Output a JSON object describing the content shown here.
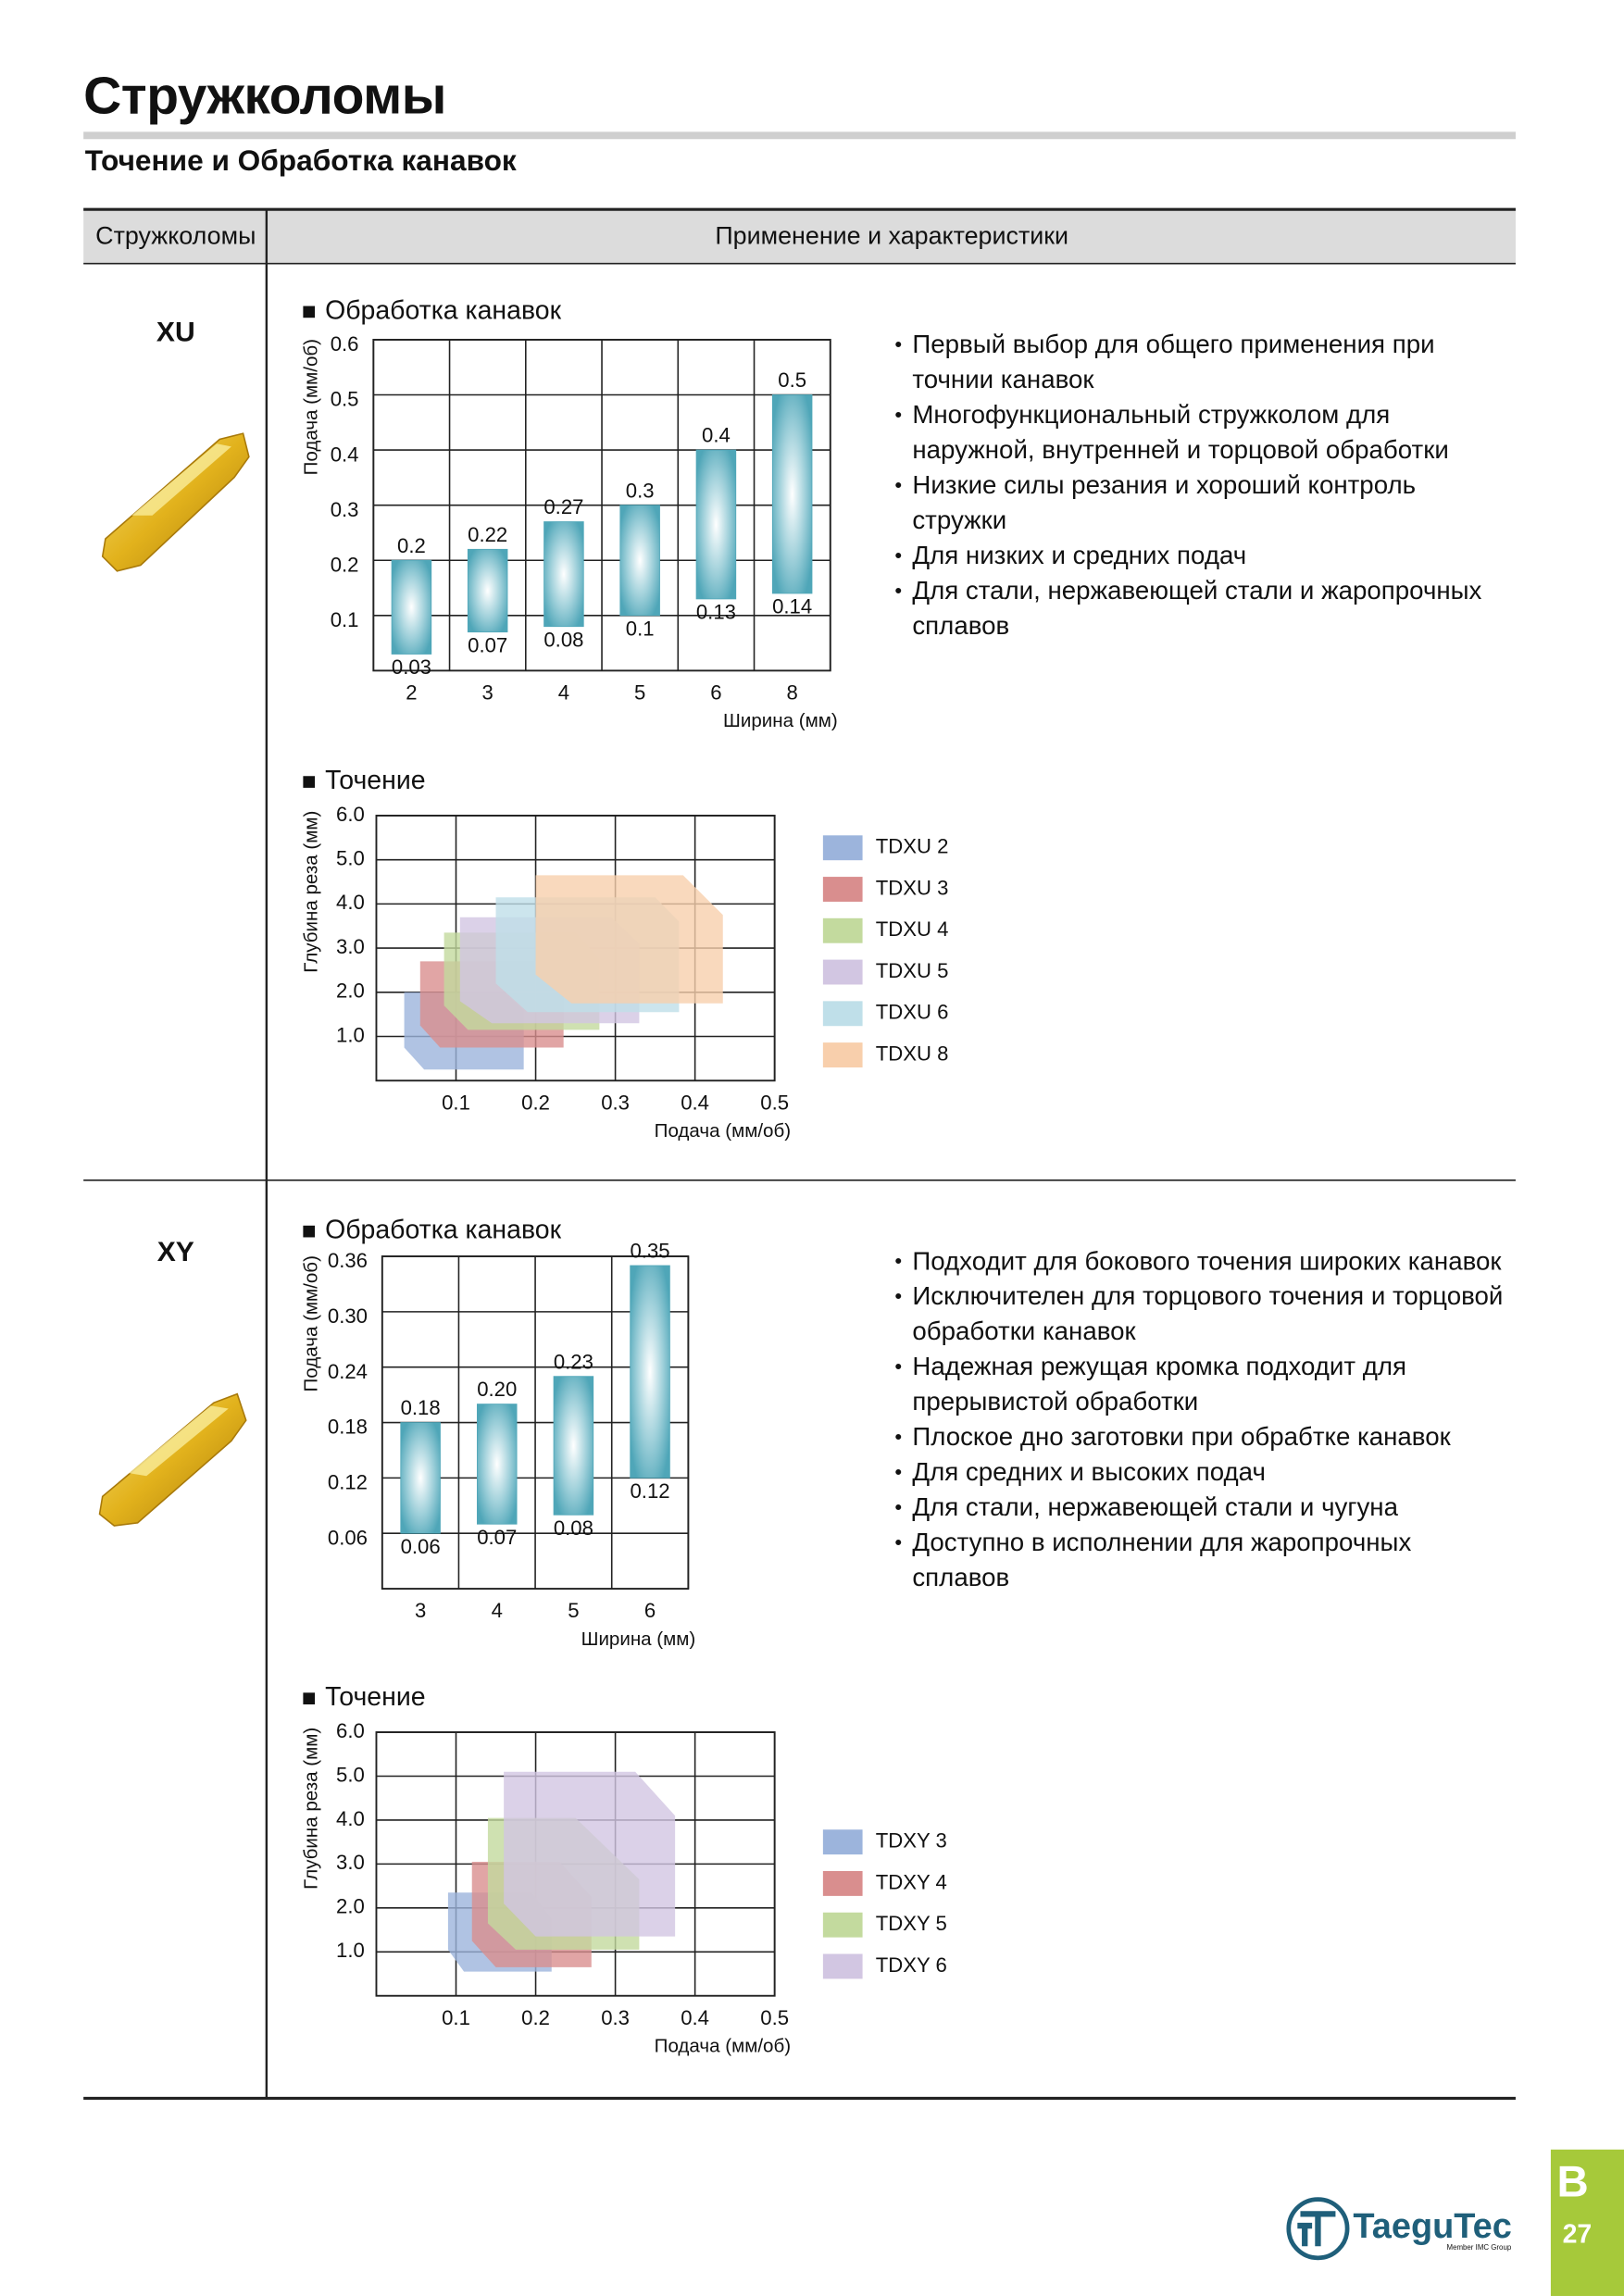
{
  "header": {
    "title": "Стружколомы",
    "subtitle": "Точение и Обработка канавок"
  },
  "table": {
    "headers": [
      "Стружколомы",
      "Применение и характеристики"
    ]
  },
  "rows": [
    {
      "name": "XU",
      "grooving": {
        "type": "range_bar",
        "title": "Обработка канавок",
        "y_label": "Подача (мм/об)",
        "x_label": "Ширина (мм)",
        "categories": [
          "2",
          "3",
          "4",
          "5",
          "6",
          "8"
        ],
        "low": [
          0.03,
          0.07,
          0.08,
          0.1,
          0.13,
          0.14
        ],
        "high": [
          0.2,
          0.22,
          0.27,
          0.3,
          0.4,
          0.5
        ],
        "ylim": [
          0,
          0.6
        ],
        "yticks": [
          0.1,
          0.2,
          0.3,
          0.4,
          0.5,
          0.6
        ],
        "color": "#4fa6b8"
      },
      "features": [
        "Первый выбор для общего применения при точнии канавок",
        "Многофункциональный стружколом для наружной, внутренней и торцовой обработки",
        "Низкие силы резания и хороший контроль стружки",
        "Для низких и средних подач",
        "Для стали, нержавеющей стали и жаропрочных сплавов"
      ],
      "turning": {
        "type": "area",
        "title": "Точение",
        "y_label": "Глубина реза (мм)",
        "x_label": "Подача (мм/об)",
        "xlim": [
          0,
          0.5
        ],
        "ylim": [
          0,
          6
        ],
        "xticks": [
          0.1,
          0.2,
          0.3,
          0.4,
          0.5
        ],
        "yticks": [
          {
            "value": 1,
            "label": "1.0"
          },
          {
            "value": 2,
            "label": "2.0"
          },
          {
            "value": 3,
            "label": "3.0"
          },
          {
            "value": 4,
            "label": "4.0"
          },
          {
            "value": 5,
            "label": "5.0"
          },
          {
            "value": 6,
            "label": "6.0"
          }
        ],
        "series": [
          {
            "name": "TDXU 2",
            "color": "#9cb4dc",
            "x": [
              0.035,
              0.16,
              0.185,
              0.185,
              0.06,
              0.035
            ],
            "y": [
              2.0,
              2.0,
              1.6,
              0.25,
              0.25,
              0.75
            ]
          },
          {
            "name": "TDXU 3",
            "color": "#d98e8e",
            "x": [
              0.055,
              0.21,
              0.235,
              0.235,
              0.08,
              0.055
            ],
            "y": [
              2.7,
              2.7,
              2.1,
              0.75,
              0.75,
              1.25
            ]
          },
          {
            "name": "TDXU 4",
            "color": "#c3da9e",
            "x": [
              0.085,
              0.25,
              0.28,
              0.28,
              0.115,
              0.085
            ],
            "y": [
              3.35,
              3.35,
              2.75,
              1.15,
              1.15,
              1.7
            ]
          },
          {
            "name": "TDXU 5",
            "color": "#d2c6e2",
            "x": [
              0.105,
              0.295,
              0.33,
              0.33,
              0.145,
              0.105
            ],
            "y": [
              3.7,
              3.7,
              3.1,
              1.3,
              1.3,
              1.8
            ]
          },
          {
            "name": "TDXU 6",
            "color": "#bfdfe9",
            "x": [
              0.15,
              0.35,
              0.38,
              0.38,
              0.19,
              0.15
            ],
            "y": [
              4.15,
              4.15,
              3.6,
              1.55,
              1.55,
              2.2
            ]
          },
          {
            "name": "TDXU 8",
            "color": "#f8cfac",
            "x": [
              0.2,
              0.385,
              0.435,
              0.435,
              0.245,
              0.2
            ],
            "y": [
              4.65,
              4.65,
              3.75,
              1.75,
              1.75,
              2.4
            ]
          }
        ]
      }
    },
    {
      "name": "XY",
      "grooving": {
        "type": "range_bar",
        "title": "Обработка канавок",
        "y_label": "Подача (мм/об)",
        "x_label": "Ширина (мм)",
        "categories": [
          "3",
          "4",
          "5",
          "6"
        ],
        "low": [
          0.06,
          0.07,
          0.08,
          0.12
        ],
        "high": [
          0.18,
          0.2,
          0.23,
          0.35
        ],
        "high_labels": [
          "0.18",
          "0.20",
          "0.23",
          "0.35"
        ],
        "ylim": [
          0,
          0.36
        ],
        "yticks": [
          0.06,
          0.12,
          0.18,
          0.24,
          {
            "value": 0.3,
            "label": "0.30"
          },
          0.36
        ],
        "color": "#4fa6b8"
      },
      "features": [
        "Подходит для бокового точения широких канавок",
        "Исключителен для торцового точения и торцовой обработки канавок",
        "Надежная режущая кромка подходит для прерывистой обработки",
        "Плоское дно заготовки при обрабтке канавок",
        "Для средних и высоких подач",
        "Для стали, нержавеющей стали и чугуна",
        "Доступно в исполнении для жаропрочных сплавов"
      ],
      "turning": {
        "type": "area",
        "title": "Точение",
        "y_label": "Глубина реза (мм)",
        "x_label": "Подача (мм/об)",
        "xlim": [
          0,
          0.5
        ],
        "ylim": [
          0,
          6
        ],
        "xticks": [
          0.1,
          0.2,
          0.3,
          0.4,
          0.5
        ],
        "yticks": [
          {
            "value": 1,
            "label": "1.0"
          },
          {
            "value": 2,
            "label": "2.0"
          },
          {
            "value": 3,
            "label": "3.0"
          },
          {
            "value": 4,
            "label": "4.0"
          },
          {
            "value": 5,
            "label": "5.0"
          },
          {
            "value": 6,
            "label": "6.0"
          }
        ],
        "series": [
          {
            "name": "TDXY 3",
            "color": "#9cb4dc",
            "x": [
              0.09,
              0.195,
              0.22,
              0.22,
              0.11,
              0.09
            ],
            "y": [
              2.35,
              2.35,
              1.75,
              0.55,
              0.55,
              1.05
            ]
          },
          {
            "name": "TDXY 4",
            "color": "#d98e8e",
            "x": [
              0.12,
              0.23,
              0.27,
              0.27,
              0.15,
              0.12
            ],
            "y": [
              3.05,
              3.05,
              2.25,
              0.65,
              0.65,
              1.25
            ]
          },
          {
            "name": "TDXY 5",
            "color": "#c3da9e",
            "x": [
              0.14,
              0.25,
              0.33,
              0.33,
              0.175,
              0.14
            ],
            "y": [
              4.05,
              4.05,
              2.65,
              1.05,
              1.05,
              1.65
            ]
          },
          {
            "name": "TDXY 6",
            "color": "#d2c6e2",
            "x": [
              0.16,
              0.325,
              0.375,
              0.375,
              0.2,
              0.16
            ],
            "y": [
              5.1,
              5.1,
              4.1,
              1.35,
              1.35,
              2.1
            ]
          }
        ]
      }
    }
  ],
  "footer": {
    "logo": "TaeguTec",
    "logo_note": "Member IMC Group",
    "section": "B",
    "page": "27"
  }
}
